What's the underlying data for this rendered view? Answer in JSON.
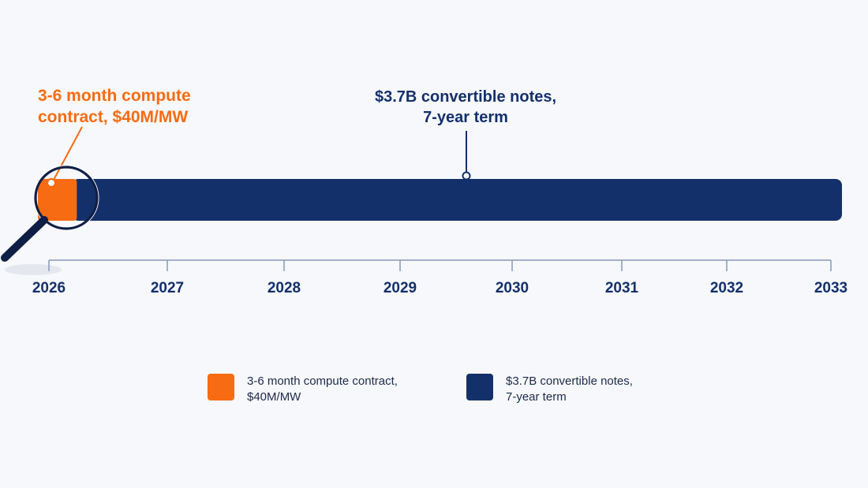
{
  "chart_data": {
    "type": "timeline",
    "title": "",
    "xlabel": "",
    "ylabel": "",
    "x_axis": {
      "ticks": [
        "2026",
        "2027",
        "2028",
        "2029",
        "2030",
        "2031",
        "2032",
        "2033"
      ],
      "range": [
        2026,
        2033
      ]
    },
    "series": [
      {
        "name": "3-6 month compute contract, $40M/MW",
        "start": 2026.0,
        "end": 2026.25,
        "color": "#f76b12",
        "annotation": "3-6 month compute contract, $40M/MW"
      },
      {
        "name": "$3.7B convertible notes, 7-year term",
        "start": 2026.25,
        "end": 2033.0,
        "color": "#14306b",
        "annotation": "$3.7B convertible notes, 7-year term"
      }
    ],
    "legend_position": "bottom",
    "grid": false
  },
  "callouts": {
    "orange_text": "3-6 month compute\ncontract, $40M/MW",
    "navy_text": "$3.7B convertible notes,\n7-year term"
  },
  "legend": {
    "items": [
      {
        "label": "3-6 month compute contract,\n$40M/MW",
        "color": "#f76b12"
      },
      {
        "label": "$3.7B convertible notes,\n7-year term",
        "color": "#14306b"
      }
    ]
  },
  "icons": {
    "magnifier": "magnifying-glass-icon"
  },
  "colors": {
    "background": "#f6f8fb",
    "orange": "#f76b12",
    "navy": "#14306b",
    "axis": "#8a98b8"
  }
}
